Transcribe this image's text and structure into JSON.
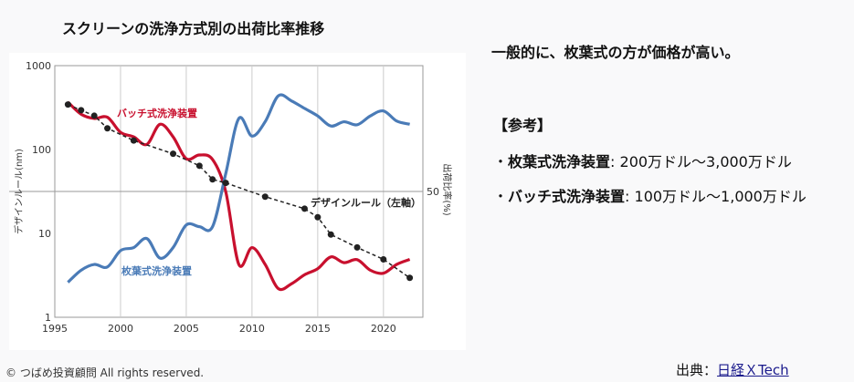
{
  "title": "スクリーンの洗浄方式別の出荷比率推移",
  "headline": "一般的に、枚葉式の方が価格が高い。",
  "reference": {
    "title": "【参考】",
    "items": [
      {
        "bullet": "・",
        "name": "枚葉式洗浄装置",
        "value": ": 200万ドル～3,000万ドル"
      },
      {
        "bullet": "・",
        "name": "バッチ式洗浄装置",
        "value": ": 100万ドル～1,000万ドル"
      }
    ]
  },
  "footer": {
    "copyright": "© つばめ投資顧問 All rights reserved.",
    "source_label": "出典：",
    "source_link": "日経ＸTech"
  },
  "chart_data": {
    "type": "line",
    "title": "スクリーンの洗浄方式別の出荷比率推移",
    "xlabel": "",
    "ylabel_left": "デザインルール(nm)",
    "ylabel_right": "出荷比率(%)",
    "xlim": [
      1995,
      2023
    ],
    "ylim_left": [
      1,
      1000
    ],
    "yscale_left": "log",
    "ylim_right": [
      0,
      100
    ],
    "x_ticks": [
      "1995",
      "2000",
      "2005",
      "2010",
      "2015",
      "2020"
    ],
    "y_ticks_left": [
      "1000",
      "100",
      "10",
      "1"
    ],
    "y_ticks_right": [
      "50"
    ],
    "grid": true,
    "colors": {
      "batch": "#c8102e",
      "single": "#4a7bb7",
      "rule": "#222222"
    },
    "series": [
      {
        "name": "バッチ式洗浄装置",
        "axis": "right",
        "key": "batch",
        "x": [
          1996,
          1997,
          1998,
          1999,
          2000,
          2001,
          2002,
          2003,
          2004,
          2005,
          2006,
          2007,
          2008,
          2009,
          2010,
          2011,
          2012,
          2013,
          2014,
          2015,
          2016,
          2017,
          2018,
          2019,
          2020,
          2021,
          2022
        ],
        "values": [
          85.5,
          80.7,
          79,
          79.5,
          73.5,
          71.7,
          68.7,
          76.7,
          71.7,
          63,
          64.5,
          62.7,
          50,
          21,
          27.7,
          21,
          11.4,
          13.3,
          16.9,
          19.3,
          24,
          21.7,
          22.9,
          18.7,
          17.5,
          21,
          23
        ]
      },
      {
        "name": "枚葉式洗浄装置",
        "axis": "right",
        "key": "single",
        "x": [
          1996,
          1997,
          1998,
          1999,
          2000,
          2001,
          2002,
          2003,
          2004,
          2005,
          2006,
          2007,
          2008,
          2009,
          2010,
          2011,
          2012,
          2013,
          2014,
          2015,
          2016,
          2017,
          2018,
          2019,
          2020,
          2021,
          2022
        ],
        "values": [
          13.9,
          18.7,
          21,
          20,
          26.5,
          27.7,
          31.3,
          23.5,
          27.7,
          36.7,
          36,
          36,
          57,
          79,
          72,
          77.7,
          88,
          86,
          83,
          80,
          76,
          77.7,
          76.5,
          80,
          82,
          78,
          76.7
        ]
      },
      {
        "name": "デザインルール（左軸）",
        "axis": "left",
        "key": "rule",
        "x": [
          1996,
          1997,
          1998,
          1999,
          2001,
          2004,
          2006,
          2007,
          2008,
          2011,
          2014,
          2015,
          2016,
          2018,
          2020,
          2022
        ],
        "values": [
          344,
          294,
          253,
          179,
          128,
          89,
          64,
          44,
          40,
          27.4,
          19.7,
          15.6,
          9.7,
          6.8,
          4.9,
          2.95
        ]
      }
    ]
  }
}
